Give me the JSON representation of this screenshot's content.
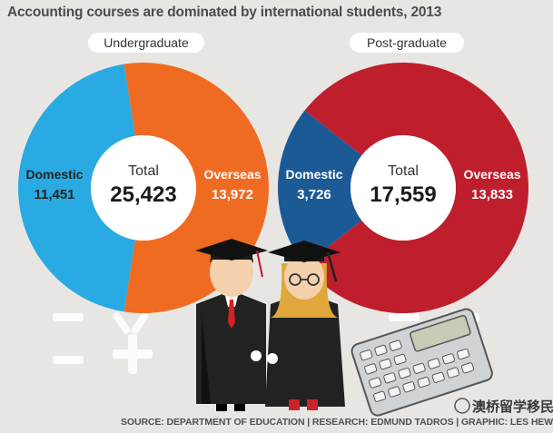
{
  "title": "Accounting courses are dominated by international students, 2013",
  "source": "SOURCE: DEPARTMENT OF EDUCATION | RESEARCH: EDMUND TADROS | GRAPHIC: LES HEWITT",
  "watermark": "澳桥留学移民",
  "chart_data": [
    {
      "type": "pie",
      "title": "Undergraduate",
      "total_label": "Total",
      "total": "25,423",
      "slices": [
        {
          "label": "Domestic",
          "display": "11,451",
          "value": 11451,
          "color": "#2aaae2"
        },
        {
          "label": "Overseas",
          "display": "13,972",
          "value": 13972,
          "color": "#f06b22"
        }
      ]
    },
    {
      "type": "pie",
      "title": "Post-graduate",
      "total_label": "Total",
      "total": "17,559",
      "slices": [
        {
          "label": "Domestic",
          "display": "3,726",
          "value": 3726,
          "color": "#1c5a96"
        },
        {
          "label": "Overseas",
          "display": "13,833",
          "value": 13833,
          "color": "#bf1e2d"
        }
      ]
    }
  ],
  "colors": {
    "background": "#e8e6e3",
    "label_dark": "#232323",
    "label_light": "#ffffff"
  }
}
